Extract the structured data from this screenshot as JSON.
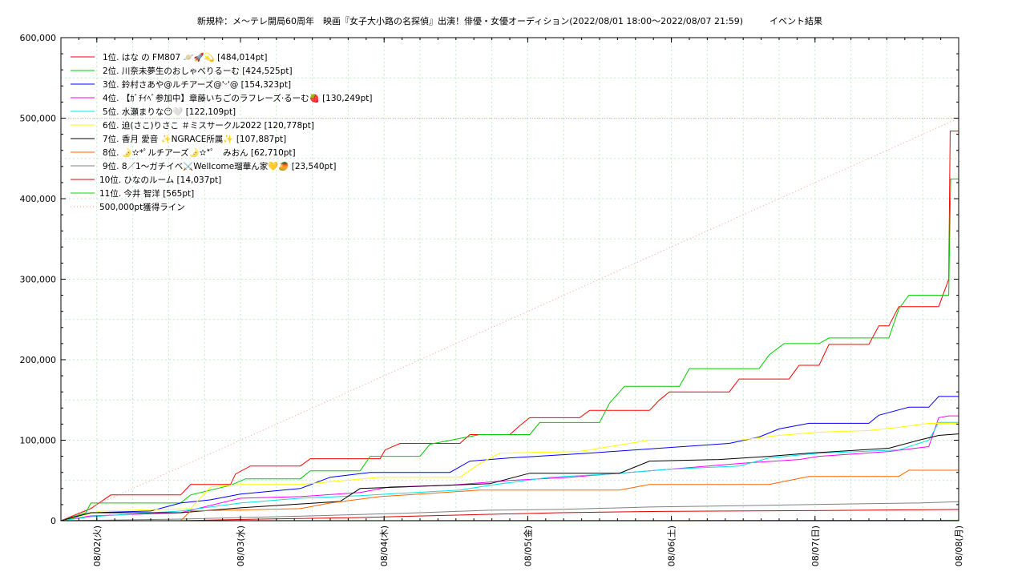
{
  "chart_data": {
    "type": "line",
    "title": "新規枠：メ〜テレ開局60周年　映画『女子大小路の名探偵』出演！俳優・女優オーディション(2022/08/01 18:00〜2022/08/07 21:59)　　　イベント結果",
    "xlabel": "",
    "ylabel": "",
    "x_ticks": [
      "08/02(火)",
      "08/03(水)",
      "08/04(木)",
      "08/05(金)",
      "08/06(土)",
      "08/07(日)",
      "08/08(月)"
    ],
    "xlim": [
      "2022-08-01 18:00",
      "2022-08-08 00:00"
    ],
    "ylim": [
      0,
      600000
    ],
    "y_ticks": [
      "0",
      "100,000",
      "200,000",
      "300,000",
      "400,000",
      "500,000",
      "600,000"
    ],
    "grid": true,
    "legend_position": "top-left",
    "series": [
      {
        "name": "1位. はな の FM807 🪐🚀💫 [484,014pt]",
        "color": "#ff0000",
        "points": [
          [
            0,
            0
          ],
          [
            6,
            15000
          ],
          [
            10,
            32000
          ],
          [
            24,
            32000
          ],
          [
            26,
            45000
          ],
          [
            34,
            45000
          ],
          [
            35,
            58000
          ],
          [
            38,
            68000
          ],
          [
            48,
            68000
          ],
          [
            50,
            77000
          ],
          [
            64,
            77000
          ],
          [
            65,
            88000
          ],
          [
            68,
            96000
          ],
          [
            80,
            96000
          ],
          [
            82,
            107000
          ],
          [
            90,
            107000
          ],
          [
            92,
            118000
          ],
          [
            94,
            128000
          ],
          [
            104,
            128000
          ],
          [
            106,
            137000
          ],
          [
            118,
            137000
          ],
          [
            120,
            150000
          ],
          [
            122,
            160000
          ],
          [
            134,
            160000
          ],
          [
            136,
            176000
          ],
          [
            146,
            176000
          ],
          [
            148,
            193000
          ],
          [
            152,
            193000
          ],
          [
            154,
            219000
          ],
          [
            162,
            219000
          ],
          [
            164,
            242000
          ],
          [
            166,
            242000
          ],
          [
            168,
            266000
          ],
          [
            176,
            266000
          ],
          [
            178,
            300000
          ],
          [
            178.3,
            484014
          ],
          [
            180,
            484014
          ]
        ]
      },
      {
        "name": "2位. 川奈未夢生のおしゃべりるーむ [424,525pt]",
        "color": "#00cc00",
        "points": [
          [
            0,
            0
          ],
          [
            5,
            10000
          ],
          [
            6,
            22000
          ],
          [
            24,
            22000
          ],
          [
            26,
            32000
          ],
          [
            34,
            44000
          ],
          [
            37,
            52000
          ],
          [
            48,
            52000
          ],
          [
            50,
            62000
          ],
          [
            60,
            62000
          ],
          [
            62,
            80000
          ],
          [
            72,
            80000
          ],
          [
            74,
            95000
          ],
          [
            84,
            107000
          ],
          [
            94,
            107000
          ],
          [
            96,
            122000
          ],
          [
            108,
            122000
          ],
          [
            110,
            146000
          ],
          [
            113,
            167000
          ],
          [
            124,
            167000
          ],
          [
            126,
            189000
          ],
          [
            140,
            189000
          ],
          [
            142,
            206000
          ],
          [
            145,
            220000
          ],
          [
            152,
            220000
          ],
          [
            154,
            227000
          ],
          [
            166,
            227000
          ],
          [
            168,
            263000
          ],
          [
            170,
            280000
          ],
          [
            178,
            280000
          ],
          [
            178.4,
            424525
          ],
          [
            180,
            424525
          ]
        ]
      },
      {
        "name": "3位. 鈴村さあや@ルチアーズ@'ᵕ'@ [154,323pt]",
        "color": "#0000ff",
        "points": [
          [
            0,
            0
          ],
          [
            6,
            10000
          ],
          [
            18,
            12000
          ],
          [
            24,
            22000
          ],
          [
            30,
            26000
          ],
          [
            36,
            33000
          ],
          [
            48,
            40000
          ],
          [
            54,
            54000
          ],
          [
            62,
            60000
          ],
          [
            78,
            60000
          ],
          [
            82,
            74000
          ],
          [
            90,
            78000
          ],
          [
            106,
            84000
          ],
          [
            120,
            90000
          ],
          [
            134,
            96000
          ],
          [
            140,
            104000
          ],
          [
            144,
            114000
          ],
          [
            150,
            121000
          ],
          [
            162,
            121000
          ],
          [
            164,
            131000
          ],
          [
            170,
            141000
          ],
          [
            174,
            141000
          ],
          [
            176,
            154323
          ],
          [
            180,
            154323
          ]
        ]
      },
      {
        "name": "4位. 【ｶﾞﾁｲﾍﾞ参加中】章藤いちごのラフレーズ·るーむ🍓 [130,249pt]",
        "color": "#ff00ff",
        "points": [
          [
            0,
            0
          ],
          [
            6,
            6000
          ],
          [
            24,
            10000
          ],
          [
            36,
            28000
          ],
          [
            48,
            30000
          ],
          [
            60,
            35000
          ],
          [
            66,
            42000
          ],
          [
            78,
            44000
          ],
          [
            90,
            50000
          ],
          [
            102,
            54000
          ],
          [
            118,
            62000
          ],
          [
            138,
            72000
          ],
          [
            148,
            76000
          ],
          [
            152,
            80000
          ],
          [
            166,
            86000
          ],
          [
            174,
            92000
          ],
          [
            176,
            128000
          ],
          [
            178,
            130249
          ],
          [
            180,
            130249
          ]
        ]
      },
      {
        "name": "5位. 水瀬まりな😶🤍 [122,109pt]",
        "color": "#00e5e5",
        "points": [
          [
            0,
            0
          ],
          [
            6,
            5000
          ],
          [
            24,
            12000
          ],
          [
            36,
            22000
          ],
          [
            48,
            28000
          ],
          [
            60,
            31000
          ],
          [
            68,
            34000
          ],
          [
            80,
            38000
          ],
          [
            86,
            44000
          ],
          [
            98,
            54000
          ],
          [
            110,
            58000
          ],
          [
            122,
            64000
          ],
          [
            136,
            68000
          ],
          [
            142,
            78000
          ],
          [
            152,
            84000
          ],
          [
            168,
            88000
          ],
          [
            174,
            100000
          ],
          [
            176,
            122109
          ],
          [
            180,
            122109
          ]
        ]
      },
      {
        "name": "6位. 迫(さこ)りさこ ＃ミスサークル2022 [120,778pt]",
        "color": "#ffff00",
        "points": [
          [
            0,
            0
          ],
          [
            8,
            12000
          ],
          [
            26,
            15000
          ],
          [
            30,
            42000
          ],
          [
            36,
            45000
          ],
          [
            48,
            45000
          ],
          [
            64,
            54000
          ],
          [
            80,
            54000
          ],
          [
            84,
            71000
          ],
          [
            88,
            84000
          ],
          [
            104,
            86000
          ],
          [
            110,
            92000
          ],
          [
            118,
            100000
          ],
          [
            136,
            100000
          ],
          [
            144,
            106000
          ],
          [
            152,
            110000
          ],
          [
            162,
            112000
          ],
          [
            168,
            116000
          ],
          [
            174,
            121000
          ],
          [
            180,
            120778
          ]
        ]
      },
      {
        "name": "7位. 香月 愛音 ✨NGRACE所属✨ [107,887pt]",
        "color": "#000000",
        "points": [
          [
            0,
            0
          ],
          [
            6,
            10000
          ],
          [
            24,
            10000
          ],
          [
            36,
            16000
          ],
          [
            56,
            24000
          ],
          [
            60,
            40000
          ],
          [
            86,
            46000
          ],
          [
            94,
            59000
          ],
          [
            112,
            59000
          ],
          [
            118,
            74000
          ],
          [
            132,
            76000
          ],
          [
            142,
            80000
          ],
          [
            150,
            84000
          ],
          [
            166,
            90000
          ],
          [
            172,
            100000
          ],
          [
            176,
            106000
          ],
          [
            180,
            107887
          ]
        ]
      },
      {
        "name": "8位. 🌛✫*ﾟルチアーズ🌛✫*ﾟ　みおん [62,710pt]",
        "color": "#ff6600",
        "points": [
          [
            0,
            0
          ],
          [
            24,
            0
          ],
          [
            26,
            12000
          ],
          [
            48,
            15000
          ],
          [
            54,
            22000
          ],
          [
            64,
            30000
          ],
          [
            84,
            38000
          ],
          [
            112,
            38000
          ],
          [
            118,
            45000
          ],
          [
            142,
            45000
          ],
          [
            146,
            50000
          ],
          [
            150,
            55000
          ],
          [
            168,
            55000
          ],
          [
            170,
            62710
          ],
          [
            180,
            62710
          ]
        ]
      },
      {
        "name": "9位. 8／1〜ガチイベ⚔️Wellcome瑠華ん家💛🥭 [23,540pt]",
        "color": "#808080",
        "points": [
          [
            0,
            0
          ],
          [
            24,
            2000
          ],
          [
            50,
            6000
          ],
          [
            72,
            10000
          ],
          [
            86,
            13000
          ],
          [
            100,
            14000
          ],
          [
            118,
            17000
          ],
          [
            140,
            19000
          ],
          [
            160,
            21000
          ],
          [
            172,
            22000
          ],
          [
            180,
            23540
          ]
        ]
      },
      {
        "name": "10位. ひなのルーム [14,037pt]",
        "color": "#dd0000",
        "points": [
          [
            0,
            0
          ],
          [
            24,
            0
          ],
          [
            40,
            2000
          ],
          [
            60,
            4000
          ],
          [
            86,
            8000
          ],
          [
            100,
            10000
          ],
          [
            120,
            11500
          ],
          [
            150,
            12500
          ],
          [
            170,
            13500
          ],
          [
            180,
            14037
          ]
        ]
      },
      {
        "name": "11位. 今井 智洋 [565pt]",
        "color": "#00dd00",
        "points": [
          [
            0,
            0
          ],
          [
            80,
            200
          ],
          [
            140,
            400
          ],
          [
            180,
            565
          ]
        ]
      },
      {
        "name": "500,000pt獲得ライン",
        "color": "#ff9999",
        "dash": true,
        "points": [
          [
            0,
            0
          ],
          [
            180,
            500000
          ]
        ]
      }
    ],
    "threshold_line": {
      "label": "500,000pt獲得ライン",
      "value": 500000,
      "color": "#c8c864"
    }
  }
}
